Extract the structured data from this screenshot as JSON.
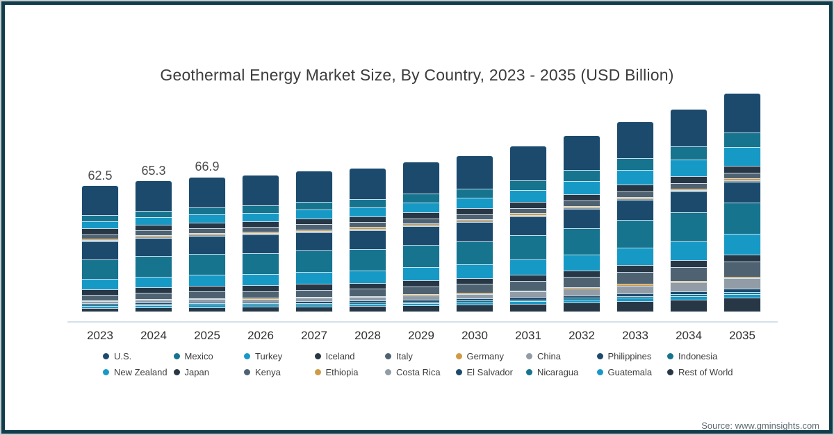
{
  "title": "Geothermal Energy Market Size, By Country, 2023 - 2035 (USD Billion)",
  "source_note": "Source: www.gminsights.com",
  "frame_color": "#113d4b",
  "chart_data": {
    "type": "bar",
    "stacked": true,
    "title": "Geothermal Energy Market Size, By Country, 2023 - 2035 (USD Billion)",
    "unit": "USD Billion",
    "xlabel": "",
    "ylabel": "",
    "grid": false,
    "legend_position": "bottom",
    "categories": [
      "2023",
      "2024",
      "2025",
      "2026",
      "2027",
      "2028",
      "2029",
      "2030",
      "2031",
      "2032",
      "2033",
      "2034",
      "2035"
    ],
    "bar_total_labels": [
      "62.5",
      "65.3",
      "66.9",
      "",
      "",
      "",
      "",
      "",
      "",
      "",
      "",
      "",
      ""
    ],
    "approx_totals": [
      62.5,
      65.3,
      66.9,
      68.3,
      70.0,
      71.6,
      74.3,
      77.9,
      82.6,
      87.8,
      94.6,
      101.3,
      109.2
    ],
    "palette": {
      "navy": "#1c4a6d",
      "teal": "#16748f",
      "cyan": "#1799c6",
      "charcoal": "#273745",
      "slate": "#4f6272",
      "orange": "#d09a45",
      "gray": "#919ca7"
    },
    "series": [
      {
        "name": "U.S.",
        "color": "#1c4a6d",
        "values": [
          14.6,
          14.9,
          15.1,
          15.2,
          15.4,
          15.5,
          15.8,
          16.2,
          16.7,
          17.2,
          17.9,
          18.6,
          19.4
        ]
      },
      {
        "name": "Mexico",
        "color": "#16748f",
        "values": [
          3.1,
          3.4,
          3.5,
          3.6,
          3.8,
          3.9,
          4.2,
          4.5,
          4.9,
          5.4,
          6.0,
          6.6,
          7.3
        ]
      },
      {
        "name": "Turkey",
        "color": "#1799c6",
        "values": [
          3.5,
          3.8,
          4.0,
          4.2,
          4.4,
          4.6,
          5.0,
          5.4,
          6.0,
          6.6,
          7.5,
          8.3,
          9.3
        ]
      },
      {
        "name": "Iceland",
        "color": "#273745",
        "values": [
          2.8,
          2.8,
          2.9,
          2.9,
          2.9,
          2.9,
          3.0,
          3.0,
          3.1,
          3.2,
          3.3,
          3.4,
          3.5
        ]
      },
      {
        "name": "Italy",
        "color": "#4f6272",
        "values": [
          2.4,
          2.4,
          2.4,
          2.4,
          2.5,
          2.5,
          2.5,
          2.5,
          2.6,
          2.6,
          2.7,
          2.7,
          2.8
        ]
      },
      {
        "name": "Germany",
        "color": "#d09a45",
        "values": [
          0.7,
          0.7,
          0.7,
          0.7,
          0.7,
          0.8,
          0.8,
          0.8,
          0.8,
          0.9,
          0.9,
          0.9,
          1.0
        ]
      },
      {
        "name": "China",
        "color": "#919ca7",
        "values": [
          0.7,
          0.7,
          0.7,
          0.7,
          0.7,
          0.7,
          0.7,
          0.7,
          0.7,
          0.7,
          0.7,
          0.7,
          0.7
        ]
      },
      {
        "name": "Philippines",
        "color": "#1c4a6d",
        "values": [
          9.0,
          9.1,
          9.1,
          9.2,
          9.2,
          9.3,
          9.4,
          9.5,
          9.6,
          9.8,
          10.0,
          10.2,
          10.4
        ]
      },
      {
        "name": "Indonesia",
        "color": "#16748f",
        "values": [
          9.7,
          10.1,
          10.3,
          10.4,
          10.7,
          10.9,
          11.2,
          11.6,
          12.2,
          12.9,
          13.8,
          14.6,
          15.6
        ]
      },
      {
        "name": "New Zealand",
        "color": "#1799c6",
        "values": [
          5.2,
          5.5,
          5.7,
          5.8,
          6.0,
          6.2,
          6.5,
          6.9,
          7.4,
          8.0,
          8.8,
          9.5,
          10.4
        ]
      },
      {
        "name": "Japan",
        "color": "#273745",
        "values": [
          2.8,
          2.8,
          2.9,
          2.9,
          2.9,
          2.9,
          3.0,
          3.0,
          3.1,
          3.2,
          3.3,
          3.4,
          3.5
        ]
      },
      {
        "name": "Kenya",
        "color": "#4f6272",
        "values": [
          2.8,
          3.1,
          3.3,
          3.4,
          3.6,
          3.7,
          4.0,
          4.4,
          4.9,
          5.4,
          6.1,
          6.8,
          7.6
        ]
      },
      {
        "name": "Ethiopia",
        "color": "#d09a45",
        "values": [
          0.3,
          0.3,
          0.4,
          0.4,
          0.4,
          0.4,
          0.5,
          0.5,
          0.6,
          0.7,
          0.8,
          0.9,
          1.0
        ]
      },
      {
        "name": "Costa Rica",
        "color": "#919ca7",
        "values": [
          1.0,
          1.3,
          1.4,
          1.5,
          1.7,
          1.8,
          2.1,
          2.4,
          2.8,
          3.3,
          3.9,
          4.5,
          5.2
        ]
      },
      {
        "name": "El Salvador",
        "color": "#1c4a6d",
        "values": [
          0.7,
          0.8,
          0.8,
          0.8,
          0.9,
          0.9,
          1.0,
          1.0,
          1.1,
          1.2,
          1.4,
          1.5,
          1.7
        ]
      },
      {
        "name": "Nicaragua",
        "color": "#16748f",
        "values": [
          0.7,
          0.7,
          0.7,
          0.7,
          0.7,
          0.8,
          0.8,
          0.8,
          0.8,
          0.9,
          0.9,
          0.9,
          1.0
        ]
      },
      {
        "name": "Guatemala",
        "color": "#1799c6",
        "values": [
          1.0,
          1.0,
          1.1,
          1.1,
          1.1,
          1.1,
          1.2,
          1.2,
          1.3,
          1.4,
          1.5,
          1.6,
          1.7
        ]
      },
      {
        "name": "Rest of World",
        "color": "#273745",
        "values": [
          1.7,
          2.0,
          2.2,
          2.3,
          2.5,
          2.7,
          3.0,
          3.4,
          3.9,
          4.5,
          5.3,
          6.0,
          6.9
        ]
      }
    ],
    "legend_rows": [
      [
        "U.S.",
        "Mexico",
        "Turkey",
        "Iceland",
        "Italy",
        "Germany",
        "China",
        "Philippines",
        "Indonesia"
      ],
      [
        "New Zealand",
        "Japan",
        "Kenya",
        "Ethiopia",
        "Costa Rica",
        "El Salvador",
        "Nicaragua",
        "Guatemala",
        "Rest of World"
      ]
    ]
  }
}
